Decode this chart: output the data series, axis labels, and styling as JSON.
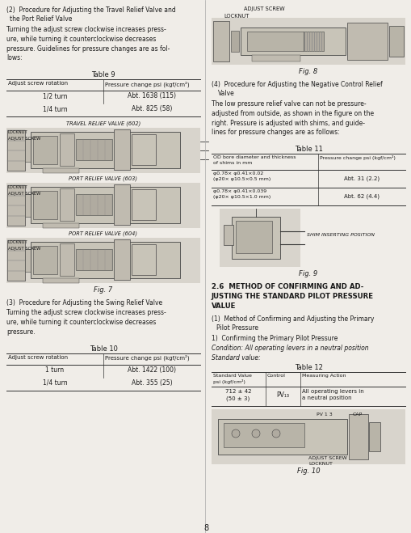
{
  "bg_color": "#f0ede8",
  "text_color": "#1a1a1a",
  "diagram_bg": "#d8d4cc",
  "diagram_line": "#444444",
  "left": {
    "heading2_line1": "(2)  Procedure for Adjusting the Travel Relief Valve and",
    "heading2_line2": "     the Port Relief Valve",
    "para2": "Turning the adjust screw clockwise increases press-\nure, while turning it counterclockwise decreases\npressure. Guidelines for pressure changes are as fol-\nlows:",
    "table9_title": "Table 9",
    "table9_headers": [
      "Adjust screw rotation",
      "Pressure change psi (kgf/cm²)"
    ],
    "table9_rows": [
      [
        "1/2 turn",
        "Abt. 1638 (115)"
      ],
      [
        "1/4 turn",
        "Abt. 825 (58)"
      ]
    ],
    "label_travel": "TRAVEL RELIEF VALVE (602)",
    "label_port603": "PORT RELIEF VALVE (603)",
    "label_port604": "PORT RELIEF VALVE (604)",
    "fig7_caption": "Fig. 7",
    "heading3": "(3)  Procedure for Adjusting the Swing Relief Valve",
    "para3": "Turning the adjust screw clockwise increases press-\nure, while turning it counterclockwise decreases\npressure.",
    "table10_title": "Table 10",
    "table10_headers": [
      "Adjust screw rotation",
      "Pressure change psi (kgf/cm²)"
    ],
    "table10_rows": [
      [
        "1 turn",
        "Abt. 1422 (100)"
      ],
      [
        "1/4 turn",
        "Abt. 355 (25)"
      ]
    ]
  },
  "right": {
    "fig8_label1": "ADJUST SCREW",
    "fig8_label2": "LOCKNUT",
    "fig8_caption": "Fig. 8",
    "heading4_line1": "(4)  Procedure for Adjusting the Negative Control Relief",
    "heading4_line2": "     Valve",
    "para4": "The low pressure relief valve can not be pressure-\nadjusted from outside, as shown in the figure on the\nright. Pressure is adjusted with shims, and guide-\nlines for pressure changes are as follows:",
    "table11_title": "Table 11",
    "table11_h1": "OD bore diameter and thickness\nof shims in mm",
    "table11_h2": "Pressure change psi (kgf/cm²)",
    "table11_rows": [
      [
        "φ0.78× φ0.41×0.02\n(φ20× φ10.5×0.5 mm)",
        "Abt. 31 (2.2)"
      ],
      [
        "φ0.78× φ0.41×0.039\n(φ20× φ10.5×1.0 mm)",
        "Abt. 62 (4.4)"
      ]
    ],
    "fig9_caption": "Fig. 9",
    "shim_label": "SHIM INSERTING POSITION",
    "s26_line1": "2.6  METHOD OF CONFIRMING AND AD-",
    "s26_line2": "JUSTING THE STANDARD PILOT PRESSURE",
    "s26_line3": "VALUE",
    "s261_line1": "(1)  Method of Confirming and Adjusting the Primary",
    "s261_line2": "      Pilot Pressure",
    "s261a": "1)  Confirming the Primary Pilot Pressure",
    "condition": "Condition: All operating levers in a neutral position",
    "standard": "Standard value:",
    "table12_title": "Table 12",
    "table12_headers": [
      "Standard Value\npsi (kgf/cm²)",
      "Control",
      "Measuring Action"
    ],
    "table12_row": [
      "712 ± 42\n(50 ± 3)",
      "PV₁₃",
      "All operating levers in\na neutral position"
    ],
    "fig10_caption": "Fig. 10",
    "fig10_pv": "PV 1 3",
    "fig10_cap": "CAP",
    "fig10_adj": "ADJUST SCREW",
    "fig10_lock": "LOCKNUT"
  }
}
